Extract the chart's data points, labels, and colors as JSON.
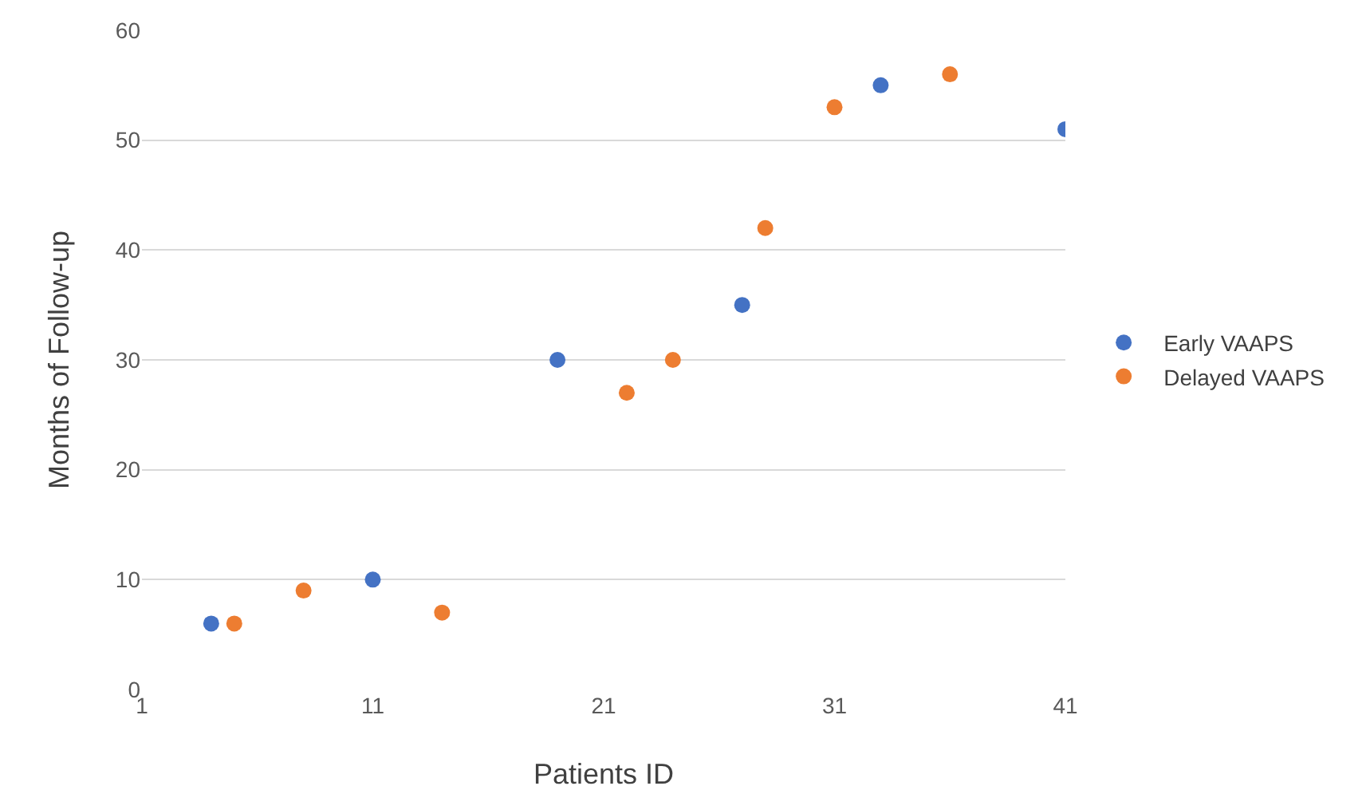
{
  "chart_data": {
    "type": "scatter",
    "xlabel": "Patients ID",
    "ylabel": "Months of Follow-up",
    "series": [
      {
        "name": "Early VAAPS",
        "color": "#4472c4",
        "x": [
          4,
          11,
          19,
          27,
          33,
          41
        ],
        "values": [
          6,
          10,
          30,
          35,
          55,
          51
        ]
      },
      {
        "name": "Delayed VAAPS",
        "color": "#ed7d31",
        "x": [
          5,
          8,
          14,
          22,
          24,
          28,
          31,
          36
        ],
        "values": [
          6,
          9,
          7,
          27,
          30,
          42,
          53,
          56
        ]
      }
    ],
    "xlim": [
      1,
      41
    ],
    "xticks": [
      1,
      11,
      21,
      31,
      41
    ],
    "ylim": [
      0,
      60
    ],
    "yticks": [
      0,
      10,
      20,
      30,
      40,
      50,
      60
    ],
    "grid": "y",
    "legend": "right",
    "marker": "circle"
  }
}
